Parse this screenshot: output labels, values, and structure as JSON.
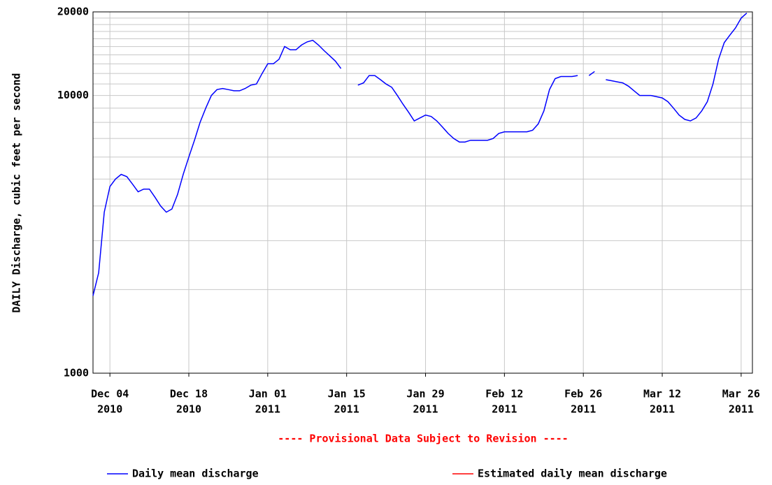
{
  "chart_data": {
    "type": "line",
    "ylabel": "DAILY Discharge, cubic feet per second",
    "footnote": "---- Provisional Data Subject to Revision ----",
    "log_y": true,
    "grid": true,
    "ylim": [
      1000,
      20000
    ],
    "yticks": [
      1000,
      10000,
      20000
    ],
    "y_minor_ticks": [
      2000,
      3000,
      4000,
      5000,
      6000,
      7000,
      8000,
      9000,
      11000,
      12000,
      13000,
      14000,
      15000,
      16000,
      17000,
      18000,
      19000
    ],
    "xlim": [
      "2010-12-01",
      "2011-03-28"
    ],
    "xticks": [
      {
        "value": "2010-12-04",
        "label": [
          "Dec 04",
          "2010"
        ]
      },
      {
        "value": "2010-12-18",
        "label": [
          "Dec 18",
          "2010"
        ]
      },
      {
        "value": "2011-01-01",
        "label": [
          "Jan 01",
          "2011"
        ]
      },
      {
        "value": "2011-01-15",
        "label": [
          "Jan 15",
          "2011"
        ]
      },
      {
        "value": "2011-01-29",
        "label": [
          "Jan 29",
          "2011"
        ]
      },
      {
        "value": "2011-02-12",
        "label": [
          "Feb 12",
          "2011"
        ]
      },
      {
        "value": "2011-02-26",
        "label": [
          "Feb 26",
          "2011"
        ]
      },
      {
        "value": "2011-03-12",
        "label": [
          "Mar 12",
          "2011"
        ]
      },
      {
        "value": "2011-03-26",
        "label": [
          "Mar 26",
          "2011"
        ]
      }
    ],
    "x": [
      "2010-12-01",
      "2010-12-02",
      "2010-12-03",
      "2010-12-04",
      "2010-12-05",
      "2010-12-06",
      "2010-12-07",
      "2010-12-08",
      "2010-12-09",
      "2010-12-10",
      "2010-12-11",
      "2010-12-12",
      "2010-12-13",
      "2010-12-14",
      "2010-12-15",
      "2010-12-16",
      "2010-12-17",
      "2010-12-18",
      "2010-12-19",
      "2010-12-20",
      "2010-12-21",
      "2010-12-22",
      "2010-12-23",
      "2010-12-24",
      "2010-12-25",
      "2010-12-26",
      "2010-12-27",
      "2010-12-28",
      "2010-12-29",
      "2010-12-30",
      "2010-12-31",
      "2011-01-01",
      "2011-01-02",
      "2011-01-03",
      "2011-01-04",
      "2011-01-05",
      "2011-01-06",
      "2011-01-07",
      "2011-01-08",
      "2011-01-09",
      "2011-01-10",
      "2011-01-11",
      "2011-01-12",
      "2011-01-13",
      "2011-01-14",
      "2011-01-15",
      "2011-01-16",
      "2011-01-17",
      "2011-01-18",
      "2011-01-19",
      "2011-01-20",
      "2011-01-21",
      "2011-01-22",
      "2011-01-23",
      "2011-01-24",
      "2011-01-25",
      "2011-01-26",
      "2011-01-27",
      "2011-01-28",
      "2011-01-29",
      "2011-01-30",
      "2011-01-31",
      "2011-02-01",
      "2011-02-02",
      "2011-02-03",
      "2011-02-04",
      "2011-02-05",
      "2011-02-06",
      "2011-02-07",
      "2011-02-08",
      "2011-02-09",
      "2011-02-10",
      "2011-02-11",
      "2011-02-12",
      "2011-02-13",
      "2011-02-14",
      "2011-02-15",
      "2011-02-16",
      "2011-02-17",
      "2011-02-18",
      "2011-02-19",
      "2011-02-20",
      "2011-02-21",
      "2011-02-22",
      "2011-02-23",
      "2011-02-24",
      "2011-02-25",
      "2011-02-26",
      "2011-02-27",
      "2011-02-28",
      "2011-03-01",
      "2011-03-02",
      "2011-03-03",
      "2011-03-04",
      "2011-03-05",
      "2011-03-06",
      "2011-03-07",
      "2011-03-08",
      "2011-03-09",
      "2011-03-10",
      "2011-03-11",
      "2011-03-12",
      "2011-03-13",
      "2011-03-14",
      "2011-03-15",
      "2011-03-16",
      "2011-03-17",
      "2011-03-18",
      "2011-03-19",
      "2011-03-20",
      "2011-03-21",
      "2011-03-22",
      "2011-03-23",
      "2011-03-24",
      "2011-03-25",
      "2011-03-26",
      "2011-03-27"
    ],
    "series": [
      {
        "name": "Daily mean discharge",
        "color": "#0000ff",
        "values": [
          1900,
          2300,
          3800,
          4700,
          5000,
          5200,
          5100,
          4800,
          4500,
          4600,
          4600,
          4300,
          4000,
          3800,
          3900,
          4400,
          5200,
          6000,
          6900,
          8000,
          9000,
          10000,
          10500,
          10600,
          10500,
          10400,
          10400,
          10600,
          10900,
          11000,
          12000,
          13000,
          13000,
          13500,
          15000,
          14600,
          14600,
          15200,
          15600,
          15800,
          15200,
          14500,
          13900,
          13300,
          12500,
          null,
          null,
          10900,
          11100,
          11800,
          11800,
          11400,
          11000,
          10700,
          10000,
          9300,
          8700,
          8100,
          8300,
          8500,
          8400,
          8100,
          7700,
          7300,
          7000,
          6800,
          6800,
          6900,
          6900,
          6900,
          6900,
          7000,
          7300,
          7400,
          7400,
          7400,
          7400,
          7400,
          7500,
          7900,
          8800,
          10500,
          11500,
          11700,
          11700,
          11700,
          11800,
          null,
          11800,
          12200,
          null,
          11400,
          11300,
          11200,
          11100,
          10800,
          10400,
          10000,
          10000,
          10000,
          9900,
          9800,
          9500,
          9000,
          8500,
          8200,
          8100,
          8300,
          8800,
          9500,
          11000,
          13500,
          15500,
          16500,
          17500,
          19000,
          19800
        ]
      }
    ],
    "legend": [
      {
        "name": "Daily mean discharge",
        "color": "#0000ff"
      },
      {
        "name": "Estimated daily mean discharge",
        "color": "#ff0000"
      }
    ]
  }
}
